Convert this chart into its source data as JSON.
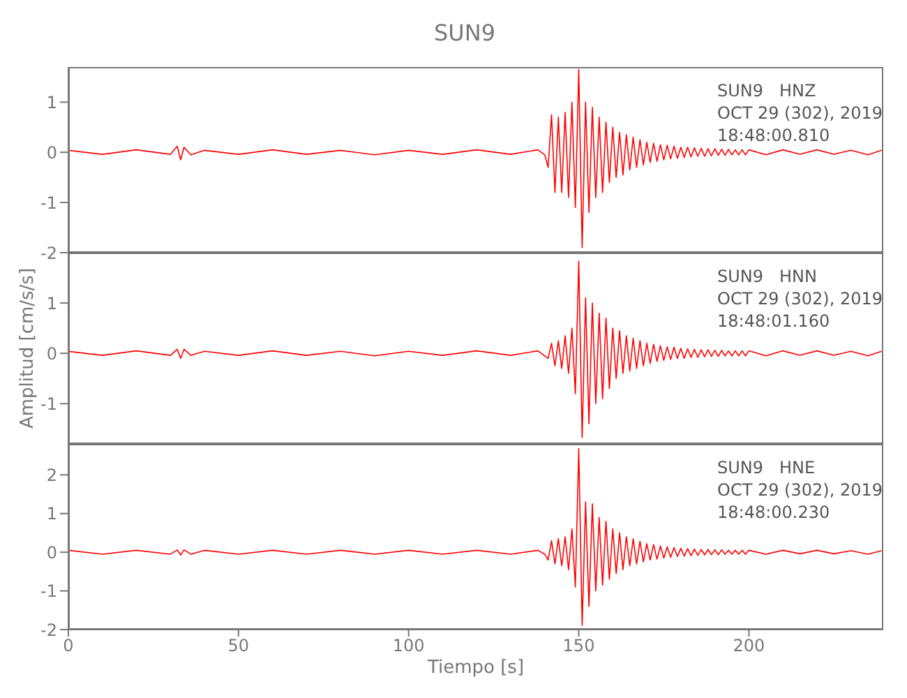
{
  "chart_data": [
    {
      "type": "line",
      "title": "SUN9",
      "x": [
        0,
        10,
        20,
        30,
        32,
        33,
        34,
        36,
        40,
        50,
        60,
        70,
        80,
        90,
        100,
        110,
        120,
        130,
        138,
        140,
        141,
        142,
        143,
        144,
        145,
        146,
        147,
        148,
        149,
        150,
        151,
        152,
        153,
        154,
        155,
        156,
        157,
        158,
        159,
        160,
        161,
        162,
        163,
        164,
        165,
        166,
        167,
        168,
        169,
        170,
        171,
        172,
        173,
        174,
        175,
        176,
        177,
        178,
        179,
        180,
        181,
        182,
        183,
        184,
        185,
        186,
        187,
        188,
        189,
        190,
        191,
        192,
        193,
        194,
        195,
        196,
        197,
        198,
        199,
        200,
        205,
        210,
        215,
        220,
        225,
        230,
        235,
        239
      ],
      "series": [
        {
          "color": "#ff0000",
          "values": [
            0.04,
            -0.04,
            0.05,
            -0.04,
            0.12,
            -0.15,
            0.1,
            -0.05,
            0.04,
            -0.04,
            0.05,
            -0.04,
            0.04,
            -0.05,
            0.04,
            -0.04,
            0.05,
            -0.04,
            0.05,
            -0.05,
            -0.3,
            0.75,
            -0.8,
            0.7,
            -0.8,
            0.8,
            -0.9,
            1.0,
            -1.1,
            1.65,
            -1.9,
            1.0,
            -1.2,
            0.9,
            -0.9,
            0.7,
            -0.8,
            0.6,
            -0.6,
            0.5,
            -0.5,
            0.4,
            -0.45,
            0.35,
            -0.35,
            0.3,
            -0.3,
            0.25,
            -0.25,
            0.2,
            -0.2,
            0.18,
            -0.18,
            0.15,
            -0.15,
            0.14,
            -0.13,
            0.12,
            -0.12,
            0.1,
            -0.1,
            0.1,
            -0.09,
            0.09,
            -0.08,
            0.08,
            -0.08,
            0.07,
            -0.07,
            0.07,
            -0.06,
            0.06,
            -0.06,
            0.06,
            -0.05,
            0.05,
            -0.05,
            0.05,
            -0.05,
            0.05,
            -0.05,
            0.05,
            -0.04,
            0.05,
            -0.04,
            0.04,
            -0.05,
            0.04
          ]
        }
      ],
      "annotations": [
        "SUN9   HNZ",
        "OCT 29 (302), 2019",
        "18:48:00.810"
      ],
      "xlim": [
        0,
        239.5
      ],
      "xticks": [
        0,
        50,
        100,
        150,
        200
      ],
      "ylim": [
        -2,
        1.7
      ],
      "yticks": [
        -2,
        -1,
        0,
        1
      ],
      "tick_labels": "y",
      "grid": false,
      "marker": "none",
      "line_style": "solid"
    },
    {
      "type": "line",
      "ylabel": "Amplitud [cm/s/s]",
      "x": [
        0,
        10,
        20,
        30,
        32,
        33,
        34,
        36,
        40,
        50,
        60,
        70,
        80,
        90,
        100,
        110,
        120,
        130,
        138,
        140,
        141,
        142,
        143,
        144,
        145,
        146,
        147,
        148,
        149,
        150,
        151,
        152,
        153,
        154,
        155,
        156,
        157,
        158,
        159,
        160,
        161,
        162,
        163,
        164,
        165,
        166,
        167,
        168,
        169,
        170,
        171,
        172,
        173,
        174,
        175,
        176,
        177,
        178,
        179,
        180,
        181,
        182,
        183,
        184,
        185,
        186,
        187,
        188,
        189,
        190,
        191,
        192,
        193,
        194,
        195,
        196,
        197,
        198,
        199,
        200,
        205,
        210,
        215,
        220,
        225,
        230,
        235,
        239
      ],
      "series": [
        {
          "color": "#ff0000",
          "values": [
            0.04,
            -0.04,
            0.05,
            -0.04,
            0.08,
            -0.1,
            0.08,
            -0.04,
            0.04,
            -0.04,
            0.05,
            -0.04,
            0.04,
            -0.05,
            0.04,
            -0.04,
            0.05,
            -0.04,
            0.05,
            -0.05,
            -0.1,
            0.2,
            -0.25,
            0.25,
            -0.3,
            0.35,
            -0.4,
            0.5,
            -0.8,
            1.83,
            -1.67,
            1.1,
            -1.4,
            1.0,
            -1.0,
            0.8,
            -0.9,
            0.7,
            -0.7,
            0.5,
            -0.5,
            0.45,
            -0.4,
            0.35,
            -0.35,
            0.3,
            -0.3,
            0.25,
            -0.25,
            0.2,
            -0.2,
            0.18,
            -0.16,
            0.15,
            -0.14,
            0.13,
            -0.12,
            0.12,
            -0.1,
            0.1,
            -0.1,
            0.09,
            -0.08,
            0.08,
            -0.08,
            0.07,
            -0.07,
            0.07,
            -0.06,
            0.06,
            -0.06,
            0.06,
            -0.05,
            0.05,
            -0.05,
            0.05,
            -0.05,
            0.05,
            -0.05,
            0.05,
            -0.05,
            0.05,
            -0.04,
            0.05,
            -0.04,
            0.04,
            -0.05,
            0.04
          ]
        }
      ],
      "annotations": [
        "SUN9   HNN",
        "OCT 29 (302), 2019",
        "18:48:01.160"
      ],
      "xlim": [
        0,
        239.5
      ],
      "xticks": [
        0,
        50,
        100,
        150,
        200
      ],
      "ylim": [
        -1.8,
        2
      ],
      "yticks": [
        -1,
        0,
        1
      ],
      "tick_labels": "y",
      "grid": false,
      "marker": "none",
      "line_style": "solid"
    },
    {
      "type": "line",
      "xlabel": "Tiempo [s]",
      "x": [
        0,
        10,
        20,
        30,
        32,
        33,
        34,
        36,
        40,
        50,
        60,
        70,
        80,
        90,
        100,
        110,
        120,
        130,
        138,
        140,
        141,
        142,
        143,
        144,
        145,
        146,
        147,
        148,
        149,
        150,
        151,
        152,
        153,
        154,
        155,
        156,
        157,
        158,
        159,
        160,
        161,
        162,
        163,
        164,
        165,
        166,
        167,
        168,
        169,
        170,
        171,
        172,
        173,
        174,
        175,
        176,
        177,
        178,
        179,
        180,
        181,
        182,
        183,
        184,
        185,
        186,
        187,
        188,
        189,
        190,
        191,
        192,
        193,
        194,
        195,
        196,
        197,
        198,
        199,
        200,
        205,
        210,
        215,
        220,
        225,
        230,
        235,
        239
      ],
      "series": [
        {
          "color": "#ff0000",
          "values": [
            0.05,
            -0.05,
            0.05,
            -0.05,
            0.06,
            -0.07,
            0.06,
            -0.05,
            0.05,
            -0.05,
            0.05,
            -0.05,
            0.05,
            -0.05,
            0.05,
            -0.05,
            0.05,
            -0.05,
            0.05,
            -0.05,
            -0.2,
            0.3,
            -0.3,
            0.35,
            -0.35,
            0.4,
            -0.45,
            0.6,
            -0.9,
            2.68,
            -1.89,
            1.3,
            -1.4,
            1.25,
            -1.0,
            0.9,
            -0.85,
            0.8,
            -0.7,
            0.6,
            -0.55,
            0.5,
            -0.45,
            0.4,
            -0.35,
            0.35,
            -0.3,
            0.28,
            -0.25,
            0.22,
            -0.2,
            0.2,
            -0.18,
            0.16,
            -0.15,
            0.14,
            -0.13,
            0.12,
            -0.11,
            0.1,
            -0.1,
            0.09,
            -0.09,
            0.08,
            -0.08,
            0.07,
            -0.07,
            0.07,
            -0.06,
            0.06,
            -0.06,
            0.06,
            -0.05,
            0.05,
            -0.05,
            0.05,
            -0.05,
            0.05,
            -0.05,
            0.05,
            -0.05,
            0.05,
            -0.04,
            0.05,
            -0.04,
            0.04,
            -0.05,
            0.04
          ]
        }
      ],
      "annotations": [
        "SUN9   HNE",
        "OCT 29 (302), 2019",
        "18:48:00.230"
      ],
      "xlim": [
        0,
        239.5
      ],
      "xticks": [
        0,
        50,
        100,
        150,
        200
      ],
      "ylim": [
        -2,
        2.8
      ],
      "yticks": [
        -2,
        -1,
        0,
        1,
        2
      ],
      "grid": false,
      "marker": "none",
      "line_style": "solid"
    }
  ]
}
